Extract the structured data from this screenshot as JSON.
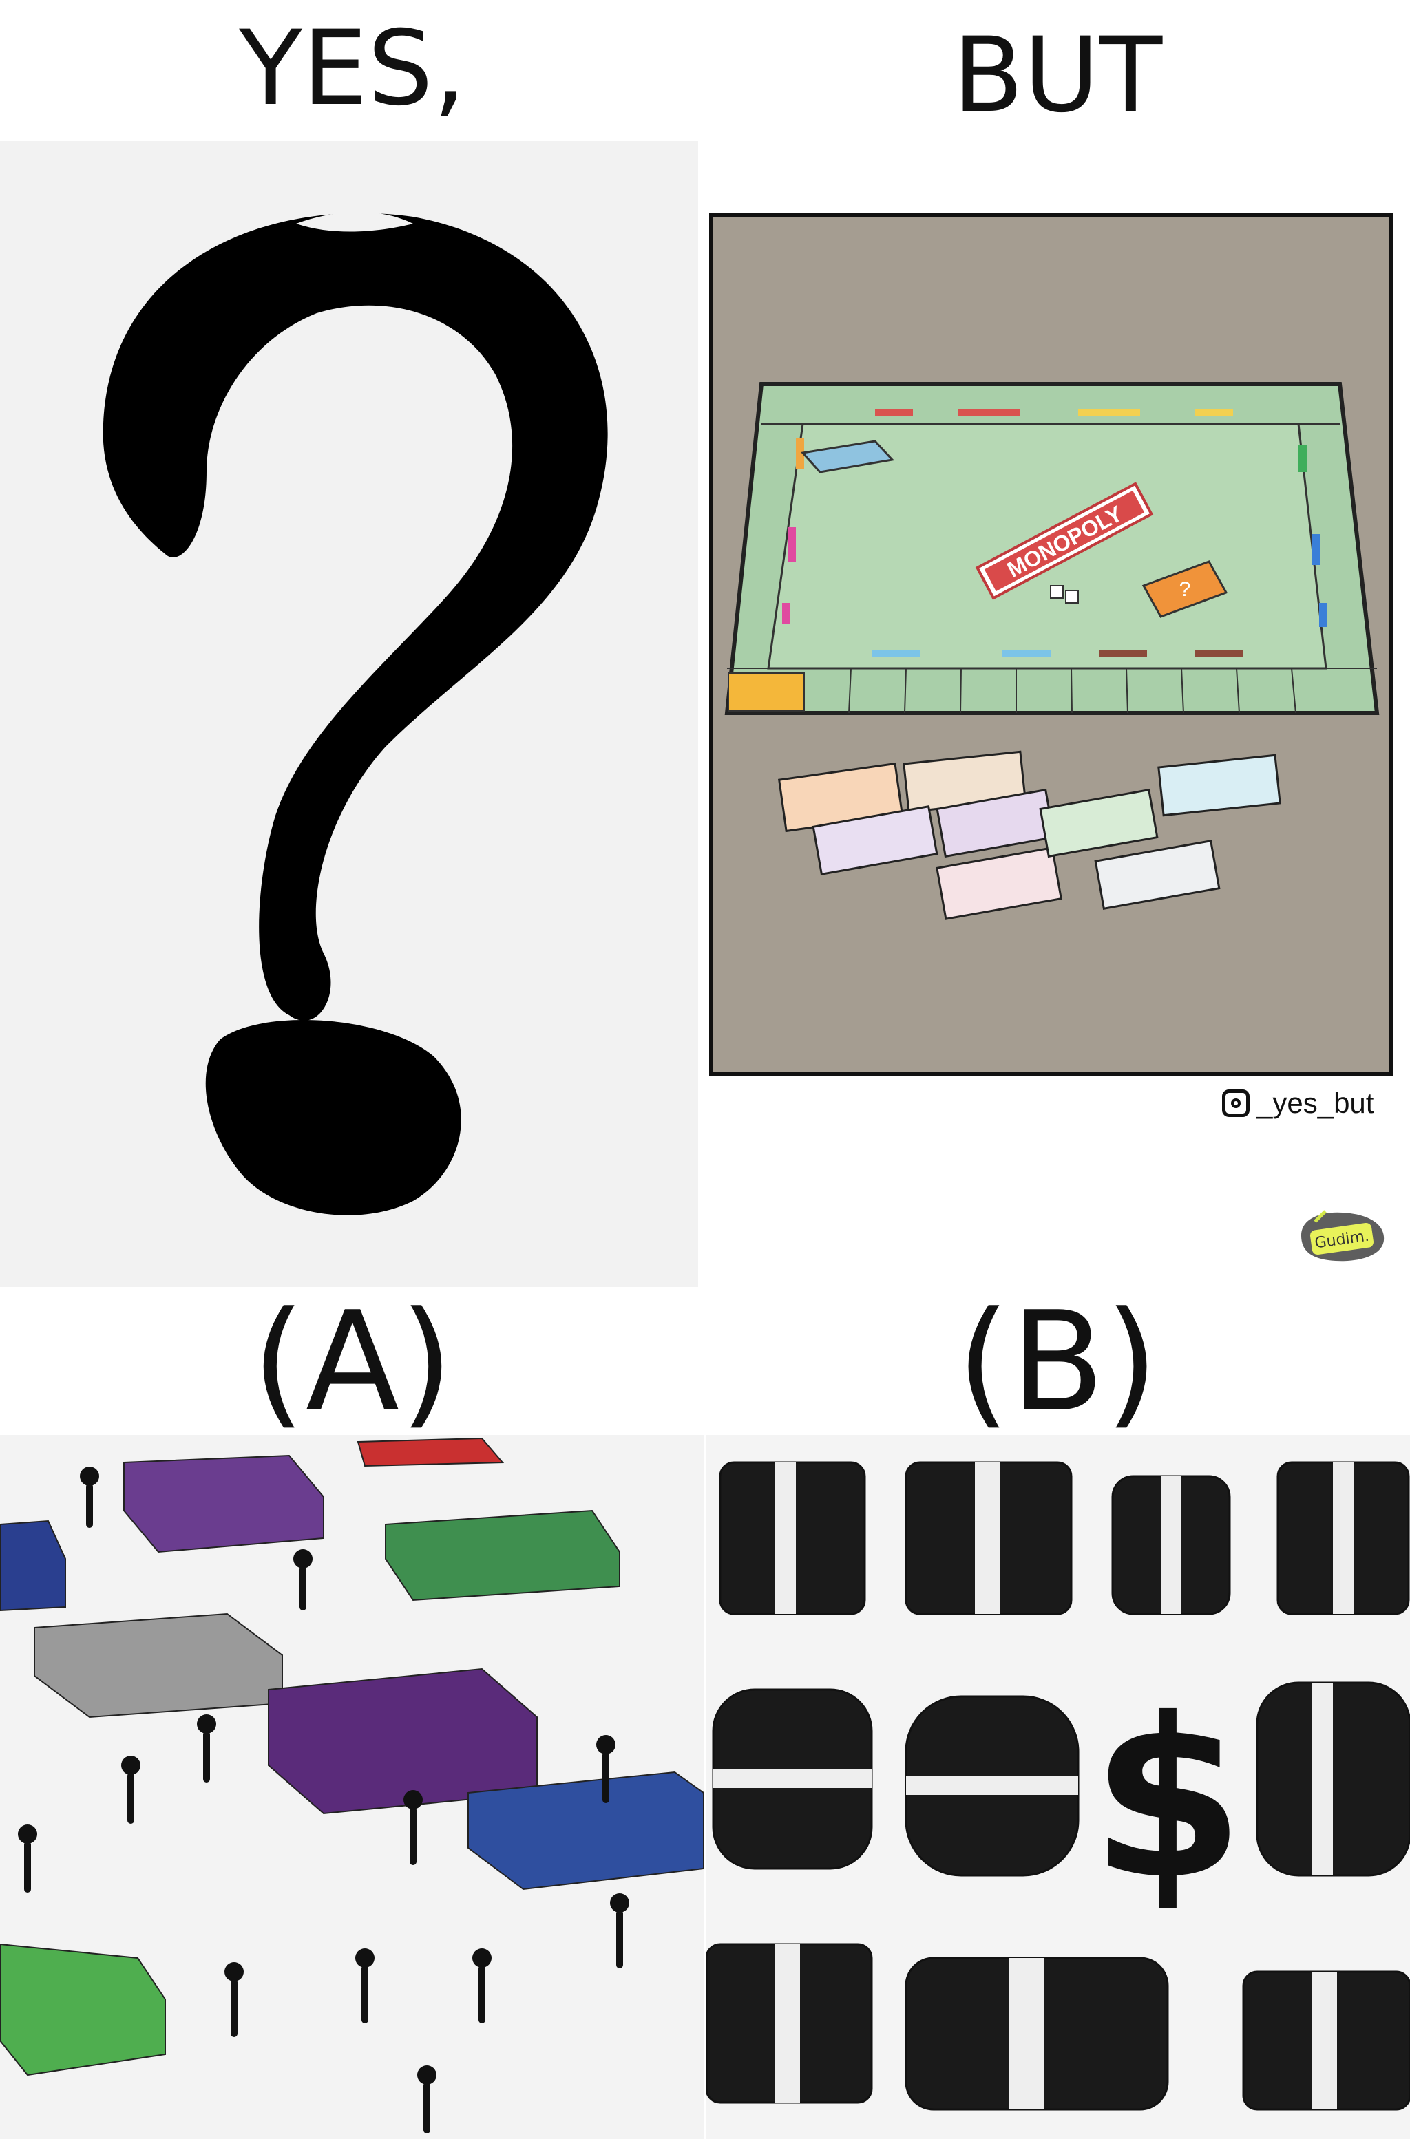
{
  "captions": {
    "top_left": "YES,",
    "top_right": "BUT",
    "option_a": "(A)",
    "option_b": "(B)"
  },
  "monopoly": {
    "board_title": "MONOPOLY",
    "card_mark": "?"
  },
  "watermark": {
    "icon": "instagram-icon",
    "handle": "_yes_but",
    "signature": "Gudim."
  },
  "colors": {
    "board": "#a9cfa9",
    "table": "#a59d91",
    "qmark": "#000000"
  }
}
